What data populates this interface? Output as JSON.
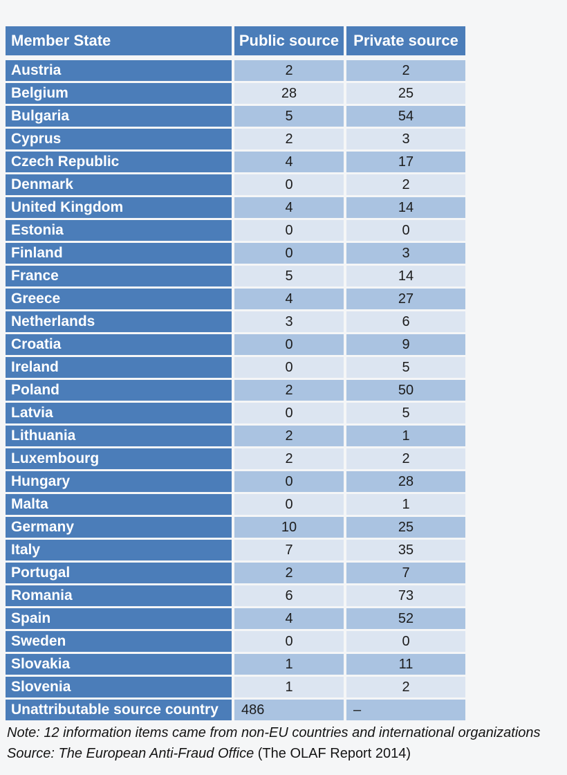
{
  "table": {
    "headers": {
      "state": "Member State",
      "public": "Public source",
      "private": "Private source"
    },
    "rows": [
      {
        "state": "Austria",
        "public": "2",
        "private": "2"
      },
      {
        "state": "Belgium",
        "public": "28",
        "private": "25"
      },
      {
        "state": "Bulgaria",
        "public": "5",
        "private": "54"
      },
      {
        "state": "Cyprus",
        "public": "2",
        "private": "3"
      },
      {
        "state": "Czech Republic",
        "public": "4",
        "private": "17"
      },
      {
        "state": "Denmark",
        "public": "0",
        "private": "2"
      },
      {
        "state": "United Kingdom",
        "public": "4",
        "private": "14"
      },
      {
        "state": "Estonia",
        "public": "0",
        "private": "0"
      },
      {
        "state": "Finland",
        "public": "0",
        "private": "3"
      },
      {
        "state": "France",
        "public": "5",
        "private": "14"
      },
      {
        "state": "Greece",
        "public": "4",
        "private": "27"
      },
      {
        "state": "Netherlands",
        "public": "3",
        "private": "6"
      },
      {
        "state": "Croatia",
        "public": "0",
        "private": "9"
      },
      {
        "state": "Ireland",
        "public": "0",
        "private": "5"
      },
      {
        "state": "Poland",
        "public": "2",
        "private": "50"
      },
      {
        "state": "Latvia",
        "public": "0",
        "private": "5"
      },
      {
        "state": "Lithuania",
        "public": "2",
        "private": "1"
      },
      {
        "state": "Luxembourg",
        "public": "2",
        "private": "2"
      },
      {
        "state": "Hungary",
        "public": "0",
        "private": "28"
      },
      {
        "state": "Malta",
        "public": "0",
        "private": "1"
      },
      {
        "state": "Germany",
        "public": "10",
        "private": "25"
      },
      {
        "state": "Italy",
        "public": "7",
        "private": "35"
      },
      {
        "state": "Portugal",
        "public": "2",
        "private": "7"
      },
      {
        "state": "Romania",
        "public": "6",
        "private": "73"
      },
      {
        "state": "Spain",
        "public": "4",
        "private": "52"
      },
      {
        "state": "Sweden",
        "public": "0",
        "private": "0"
      },
      {
        "state": "Slovakia",
        "public": "1",
        "private": "11"
      },
      {
        "state": "Slovenia",
        "public": "1",
        "private": "2"
      },
      {
        "state": "Unattributable source country",
        "public": "486",
        "private": "–",
        "align": "left"
      }
    ]
  },
  "notes": {
    "note_line": "Note: 12 information items came from non-EU countries and international organizations",
    "source_italic": "Source: The European Anti-Fraud Office",
    "source_regular": " (The OLAF Report 2014)"
  },
  "colors": {
    "header_blue": "#4b7db9",
    "row_stripe_dark": "#aac3e1",
    "row_stripe_light": "#dce5f1",
    "header_text": "#ffffff",
    "value_text": "#1c1c1c",
    "background": "#f5f6f7"
  },
  "chart_data": {
    "type": "table",
    "title": "",
    "columns": [
      "Member State",
      "Public source",
      "Private source"
    ],
    "categories": [
      "Austria",
      "Belgium",
      "Bulgaria",
      "Cyprus",
      "Czech Republic",
      "Denmark",
      "United Kingdom",
      "Estonia",
      "Finland",
      "France",
      "Greece",
      "Netherlands",
      "Croatia",
      "Ireland",
      "Poland",
      "Latvia",
      "Lithuania",
      "Luxembourg",
      "Hungary",
      "Malta",
      "Germany",
      "Italy",
      "Portugal",
      "Romania",
      "Spain",
      "Sweden",
      "Slovakia",
      "Slovenia",
      "Unattributable source country"
    ],
    "series": [
      {
        "name": "Public source",
        "values": [
          2,
          28,
          5,
          2,
          4,
          0,
          4,
          0,
          0,
          5,
          4,
          3,
          0,
          0,
          2,
          0,
          2,
          2,
          0,
          0,
          10,
          7,
          2,
          6,
          4,
          0,
          1,
          1,
          486
        ]
      },
      {
        "name": "Private source",
        "values": [
          2,
          25,
          54,
          3,
          17,
          2,
          14,
          0,
          3,
          14,
          27,
          6,
          9,
          5,
          50,
          5,
          1,
          2,
          28,
          1,
          25,
          35,
          7,
          73,
          52,
          0,
          11,
          2,
          "–"
        ]
      }
    ],
    "note": "Note: 12 information items came from non-EU countries and international organizations",
    "source": "Source: The European Anti-Fraud Office (The OLAF Report 2014)"
  }
}
